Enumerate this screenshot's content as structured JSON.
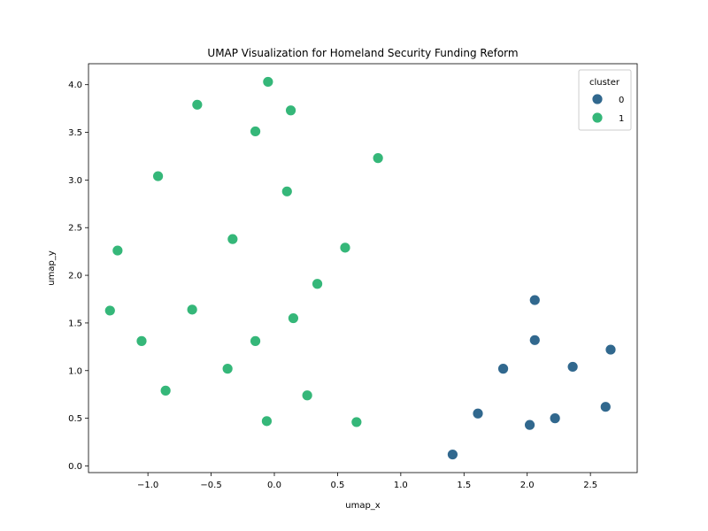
{
  "chart_data": {
    "type": "scatter",
    "title": "UMAP Visualization for Homeland Security Funding Reform",
    "xlabel": "umap_x",
    "ylabel": "umap_y",
    "xlim": [
      -1.47,
      2.87
    ],
    "ylim": [
      -0.07,
      4.22
    ],
    "x_ticks": [
      -1.0,
      -0.5,
      0.0,
      0.5,
      1.0,
      1.5,
      2.0,
      2.5
    ],
    "x_tick_labels": [
      "−1.0",
      "−0.5",
      "0.0",
      "0.5",
      "1.0",
      "1.5",
      "2.0",
      "2.5"
    ],
    "y_ticks": [
      0.0,
      0.5,
      1.0,
      1.5,
      2.0,
      2.5,
      3.0,
      3.5,
      4.0
    ],
    "y_tick_labels": [
      "0.0",
      "0.5",
      "1.0",
      "1.5",
      "2.0",
      "2.5",
      "3.0",
      "3.5",
      "4.0"
    ],
    "grid": false,
    "legend": {
      "title": "cluster",
      "placement": "top-right"
    },
    "series": [
      {
        "name": "0",
        "color": "#31688e",
        "points": [
          [
            2.06,
            1.74
          ],
          [
            2.06,
            1.32
          ],
          [
            2.66,
            1.22
          ],
          [
            1.81,
            1.02
          ],
          [
            2.36,
            1.04
          ],
          [
            1.61,
            0.55
          ],
          [
            2.22,
            0.5
          ],
          [
            2.02,
            0.43
          ],
          [
            2.62,
            0.62
          ],
          [
            1.41,
            0.12
          ]
        ]
      },
      {
        "name": "1",
        "color": "#35b779",
        "points": [
          [
            -0.05,
            4.03
          ],
          [
            -0.61,
            3.79
          ],
          [
            0.13,
            3.73
          ],
          [
            -0.15,
            3.51
          ],
          [
            0.82,
            3.23
          ],
          [
            -0.92,
            3.04
          ],
          [
            0.1,
            2.88
          ],
          [
            -0.33,
            2.38
          ],
          [
            0.56,
            2.29
          ],
          [
            -1.24,
            2.26
          ],
          [
            0.34,
            1.91
          ],
          [
            -1.3,
            1.63
          ],
          [
            -0.65,
            1.64
          ],
          [
            0.15,
            1.55
          ],
          [
            -1.05,
            1.31
          ],
          [
            -0.15,
            1.31
          ],
          [
            -0.37,
            1.02
          ],
          [
            -0.86,
            0.79
          ],
          [
            0.26,
            0.74
          ],
          [
            -0.06,
            0.47
          ],
          [
            0.65,
            0.46
          ]
        ]
      }
    ]
  }
}
